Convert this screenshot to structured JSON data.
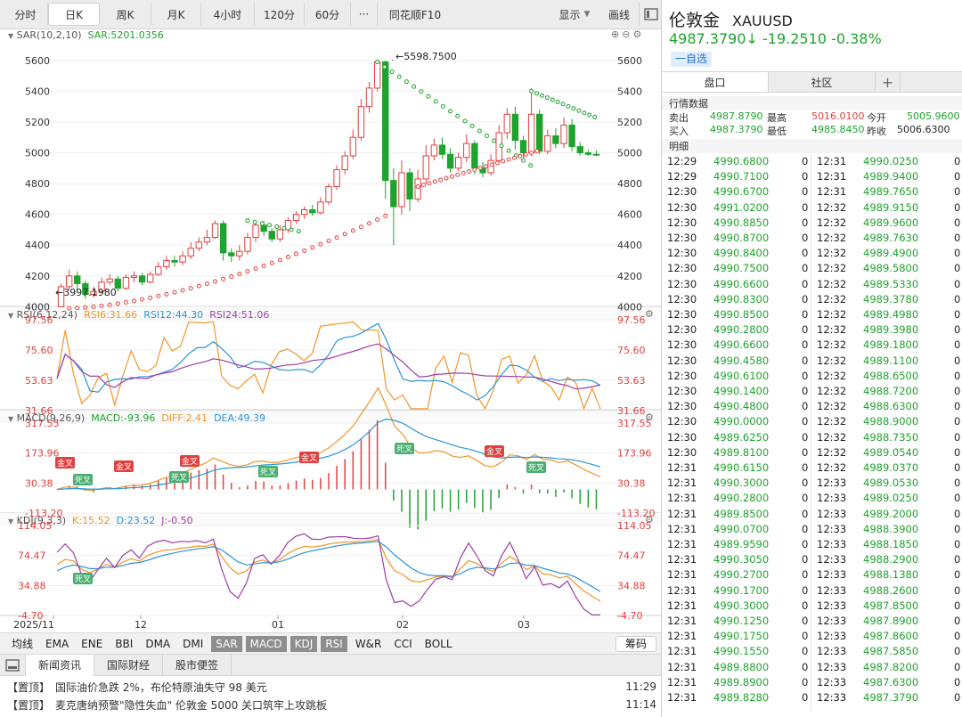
{
  "toolbar": {
    "periods": [
      "分时",
      "日K",
      "周K",
      "月K",
      "4小时",
      "120分",
      "60分"
    ],
    "active": "日K",
    "more": "···",
    "f10": "同花顺F10",
    "display": "显示",
    "draw": "画线"
  },
  "sar": {
    "label": "SAR(10,2,10)",
    "value_label": "SAR:5201.0356",
    "max_label": "5598.7500",
    "min_label": "3997.1980",
    "y_ticks": [
      "5600",
      "5400",
      "5200",
      "5000",
      "4800",
      "4600",
      "4400",
      "4200",
      "4000"
    ]
  },
  "rsi": {
    "label": "RSI(6,12,24)",
    "v1": "RSI6:31.66",
    "v2": "RSI12:44.30",
    "v3": "RSI24:51.06",
    "y_ticks": [
      "97.56",
      "75.60",
      "53.63",
      "31.66"
    ]
  },
  "macd": {
    "label": "MACD(9,26,9)",
    "v1": "MACD:-93.96",
    "v2": "DIFF:2.41",
    "v3": "DEA:49.39",
    "y_ticks": [
      "317.55",
      "173.96",
      "30.38",
      "-113.20"
    ],
    "golden": "金叉",
    "death": "死叉"
  },
  "kdj": {
    "label": "KDJ(9,3,3)",
    "v1": "K:15.52",
    "v2": "D:23.52",
    "v3": "J:-0.50",
    "y_ticks": [
      "114.05",
      "74.47",
      "34.88",
      "-4.70"
    ],
    "death": "死叉"
  },
  "xaxis": [
    "2025/11",
    "12",
    "01",
    "02",
    "03"
  ],
  "indicators": [
    "均线",
    "EMA",
    "ENE",
    "BBI",
    "DMA",
    "DMI",
    "SAR",
    "MACD",
    "KDJ",
    "RSI",
    "W&R",
    "CCI",
    "BOLL"
  ],
  "indicators_on": [
    "SAR",
    "MACD",
    "KDJ",
    "RSI"
  ],
  "chouma": "筹码",
  "news_tabs": [
    "新闻资讯",
    "国际财经",
    "股市便签"
  ],
  "news": [
    {
      "tag": "【置顶】",
      "text": "国际油价急跌 2%，布伦特原油失守 98 美元",
      "time": "11:29"
    },
    {
      "tag": "【置顶】",
      "text": "麦克唐纳预警\"隐性失血\" 伦敦金 5000 关口筑牢上攻跳板",
      "time": "11:14"
    }
  ],
  "quote": {
    "name": "伦敦金",
    "code": "XAUUSD",
    "price": "4987.3790↓",
    "change": "-19.2510",
    "pct": "-0.38%",
    "watch": "一自选"
  },
  "rtabs": [
    "盘口",
    "社区"
  ],
  "rplus": "+",
  "market": {
    "title": "行情数据",
    "sell_label": "卖出",
    "sell": "4987.8790",
    "high_label": "最高",
    "high": "5016.0100",
    "open_label": "今开",
    "open": "5005.9600",
    "buy_label": "买入",
    "buy": "4987.3790",
    "low_label": "最低",
    "low": "4985.8450",
    "prev_label": "昨收",
    "prev": "5006.6300"
  },
  "detail_title": "明细",
  "ticks_left": [
    [
      "12:29",
      "4990.6800",
      "0"
    ],
    [
      "12:29",
      "4990.7100",
      "0"
    ],
    [
      "12:30",
      "4990.6700",
      "0"
    ],
    [
      "12:30",
      "4991.0200",
      "0"
    ],
    [
      "12:30",
      "4990.8850",
      "0"
    ],
    [
      "12:30",
      "4990.8700",
      "0"
    ],
    [
      "12:30",
      "4990.8400",
      "0"
    ],
    [
      "12:30",
      "4990.7500",
      "0"
    ],
    [
      "12:30",
      "4990.6600",
      "0"
    ],
    [
      "12:30",
      "4990.8300",
      "0"
    ],
    [
      "12:30",
      "4990.8500",
      "0"
    ],
    [
      "12:30",
      "4990.2800",
      "0"
    ],
    [
      "12:30",
      "4990.6600",
      "0"
    ],
    [
      "12:30",
      "4990.4580",
      "0"
    ],
    [
      "12:30",
      "4990.6100",
      "0"
    ],
    [
      "12:30",
      "4990.1400",
      "0"
    ],
    [
      "12:30",
      "4990.4800",
      "0"
    ],
    [
      "12:30",
      "4990.0000",
      "0"
    ],
    [
      "12:30",
      "4989.6250",
      "0"
    ],
    [
      "12:30",
      "4989.8100",
      "0"
    ],
    [
      "12:31",
      "4990.6150",
      "0"
    ],
    [
      "12:31",
      "4990.3000",
      "0"
    ],
    [
      "12:31",
      "4990.2800",
      "0"
    ],
    [
      "12:31",
      "4989.8500",
      "0"
    ],
    [
      "12:31",
      "4990.0700",
      "0"
    ],
    [
      "12:31",
      "4989.9590",
      "0"
    ],
    [
      "12:31",
      "4990.3050",
      "0"
    ],
    [
      "12:31",
      "4990.2700",
      "0"
    ],
    [
      "12:31",
      "4990.1700",
      "0"
    ],
    [
      "12:31",
      "4990.3000",
      "0"
    ],
    [
      "12:31",
      "4990.1250",
      "0"
    ],
    [
      "12:31",
      "4990.1750",
      "0"
    ],
    [
      "12:31",
      "4990.1550",
      "0"
    ],
    [
      "12:31",
      "4989.8800",
      "0"
    ],
    [
      "12:31",
      "4989.8900",
      "0"
    ],
    [
      "12:31",
      "4989.8280",
      "0"
    ]
  ],
  "ticks_right": [
    [
      "12:31",
      "4990.0250",
      "0"
    ],
    [
      "12:31",
      "4989.9400",
      "0"
    ],
    [
      "12:31",
      "4989.7650",
      "0"
    ],
    [
      "12:32",
      "4989.9150",
      "0"
    ],
    [
      "12:32",
      "4989.9600",
      "0"
    ],
    [
      "12:32",
      "4989.7630",
      "0"
    ],
    [
      "12:32",
      "4989.4900",
      "0"
    ],
    [
      "12:32",
      "4989.5800",
      "0"
    ],
    [
      "12:32",
      "4989.5330",
      "0"
    ],
    [
      "12:32",
      "4989.3780",
      "0"
    ],
    [
      "12:32",
      "4989.4980",
      "0"
    ],
    [
      "12:32",
      "4989.3980",
      "0"
    ],
    [
      "12:32",
      "4989.1800",
      "0"
    ],
    [
      "12:32",
      "4989.1100",
      "0"
    ],
    [
      "12:32",
      "4988.6500",
      "0"
    ],
    [
      "12:32",
      "4988.7200",
      "0"
    ],
    [
      "12:32",
      "4988.6300",
      "0"
    ],
    [
      "12:32",
      "4988.9000",
      "0"
    ],
    [
      "12:32",
      "4988.7350",
      "0"
    ],
    [
      "12:32",
      "4989.0540",
      "0"
    ],
    [
      "12:32",
      "4989.0370",
      "0"
    ],
    [
      "12:33",
      "4989.0530",
      "0"
    ],
    [
      "12:33",
      "4989.0250",
      "0"
    ],
    [
      "12:33",
      "4989.2000",
      "0"
    ],
    [
      "12:33",
      "4988.3900",
      "0"
    ],
    [
      "12:33",
      "4988.1850",
      "0"
    ],
    [
      "12:33",
      "4988.2900",
      "0"
    ],
    [
      "12:33",
      "4988.1380",
      "0"
    ],
    [
      "12:33",
      "4988.2600",
      "0"
    ],
    [
      "12:33",
      "4987.8500",
      "0"
    ],
    [
      "12:33",
      "4987.8900",
      "0"
    ],
    [
      "12:33",
      "4987.8600",
      "0"
    ],
    [
      "12:33",
      "4987.5850",
      "0"
    ],
    [
      "12:33",
      "4987.8200",
      "0"
    ],
    [
      "12:33",
      "4987.6300",
      "0"
    ],
    [
      "12:33",
      "4987.3790",
      "0"
    ]
  ],
  "colors": {
    "up": "#e0403f",
    "down": "#1fa32e",
    "rsi6": "#f0962b",
    "rsi12": "#2a95d8",
    "rsi24": "#a23ba9",
    "sar_up": "#e0403f",
    "sar_down": "#1fa32e"
  },
  "chart_data": {
    "type": "candlestick",
    "title": "",
    "y_range": [
      3950,
      5680
    ],
    "x_ticks": [
      "2025/11",
      "12",
      "01",
      "02",
      "03"
    ],
    "candles_approx": [
      [
        4000,
        4130,
        3997,
        4150
      ],
      [
        4130,
        4200,
        4110,
        4240
      ],
      [
        4200,
        4150,
        4100,
        4230
      ],
      [
        4150,
        4080,
        4050,
        4170
      ],
      [
        4080,
        4100,
        4060,
        4130
      ],
      [
        4100,
        4160,
        4090,
        4190
      ],
      [
        4160,
        4180,
        4140,
        4210
      ],
      [
        4180,
        4120,
        4100,
        4200
      ],
      [
        4120,
        4190,
        4110,
        4210
      ],
      [
        4190,
        4200,
        4160,
        4230
      ],
      [
        4200,
        4160,
        4140,
        4220
      ],
      [
        4160,
        4210,
        4150,
        4230
      ],
      [
        4210,
        4260,
        4200,
        4290
      ],
      [
        4260,
        4300,
        4240,
        4330
      ],
      [
        4300,
        4290,
        4260,
        4330
      ],
      [
        4290,
        4330,
        4270,
        4360
      ],
      [
        4330,
        4380,
        4310,
        4420
      ],
      [
        4380,
        4420,
        4360,
        4450
      ],
      [
        4420,
        4450,
        4400,
        4500
      ],
      [
        4450,
        4540,
        4440,
        4560
      ],
      [
        4540,
        4350,
        4300,
        4560
      ],
      [
        4350,
        4330,
        4290,
        4380
      ],
      [
        4330,
        4360,
        4300,
        4400
      ],
      [
        4360,
        4450,
        4340,
        4480
      ],
      [
        4450,
        4530,
        4420,
        4550
      ],
      [
        4530,
        4490,
        4460,
        4560
      ],
      [
        4490,
        4440,
        4420,
        4510
      ],
      [
        4440,
        4500,
        4420,
        4530
      ],
      [
        4500,
        4560,
        4480,
        4580
      ],
      [
        4560,
        4600,
        4540,
        4620
      ],
      [
        4600,
        4630,
        4570,
        4650
      ],
      [
        4630,
        4610,
        4590,
        4660
      ],
      [
        4610,
        4680,
        4600,
        4710
      ],
      [
        4680,
        4780,
        4660,
        4800
      ],
      [
        4780,
        4890,
        4760,
        4920
      ],
      [
        4890,
        4980,
        4860,
        5010
      ],
      [
        4980,
        5100,
        4960,
        5150
      ],
      [
        5100,
        5300,
        5080,
        5350
      ],
      [
        5300,
        5420,
        5260,
        5460
      ],
      [
        5420,
        5590,
        5400,
        5599
      ],
      [
        5590,
        4820,
        4700,
        5600
      ],
      [
        4820,
        4650,
        4400,
        4900
      ],
      [
        4650,
        4870,
        4600,
        4950
      ],
      [
        4870,
        4700,
        4620,
        4900
      ],
      [
        4700,
        4830,
        4680,
        4890
      ],
      [
        4830,
        4980,
        4800,
        5050
      ],
      [
        4980,
        5050,
        4950,
        5090
      ],
      [
        5050,
        4990,
        4960,
        5100
      ],
      [
        4990,
        4900,
        4870,
        5030
      ],
      [
        4900,
        4970,
        4880,
        5000
      ],
      [
        4970,
        5060,
        4940,
        5120
      ],
      [
        5060,
        4900,
        4860,
        5080
      ],
      [
        4900,
        4870,
        4840,
        4940
      ],
      [
        4870,
        4950,
        4850,
        4990
      ],
      [
        4950,
        5130,
        4930,
        5180
      ],
      [
        5130,
        5250,
        5090,
        5290
      ],
      [
        5250,
        5080,
        5020,
        5300
      ],
      [
        5080,
        5000,
        4960,
        5110
      ],
      [
        5000,
        5250,
        4980,
        5420
      ],
      [
        5250,
        5010,
        4990,
        5280
      ],
      [
        5010,
        5110,
        4990,
        5150
      ],
      [
        5110,
        5060,
        5030,
        5160
      ],
      [
        5060,
        5180,
        5030,
        5230
      ],
      [
        5180,
        5040,
        5010,
        5220
      ],
      [
        5040,
        5000,
        4980,
        5070
      ],
      [
        5000,
        4990,
        4980,
        5020
      ],
      [
        4990,
        4987,
        4985,
        5016
      ]
    ]
  }
}
